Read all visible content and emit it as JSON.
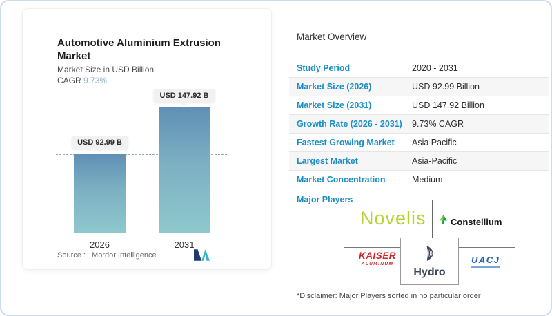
{
  "card": {
    "title": "Automotive Aluminium Extrusion Market",
    "subtitle": "Market Size in USD Billion",
    "cagr_label": "CAGR",
    "cagr_value": "9.73%",
    "source_label": "Source :",
    "source_value": "Mordor Intelligence"
  },
  "chart_data": {
    "type": "bar",
    "title": "Automotive Aluminium Extrusion Market",
    "ylabel": "Market Size in USD Billion",
    "categories": [
      "2026",
      "2031"
    ],
    "values": [
      92.99,
      147.92
    ],
    "value_labels": [
      "USD 92.99 B",
      "USD 147.92 B"
    ],
    "cagr": "9.73%",
    "reference_line": "horizontal dashed line at 2026 bar top (92.99)",
    "bar_gradient_top": "#6090b6",
    "bar_gradient_bottom": "#8fc8cd",
    "grid": "off",
    "legend": "none"
  },
  "overview": {
    "title": "Market Overview",
    "rows": [
      {
        "label": "Study Period",
        "value": "2020 - 2031"
      },
      {
        "label": "Market Size (2026)",
        "value": "USD 92.99 Billion"
      },
      {
        "label": "Market Size (2031)",
        "value": "USD 147.92 Billion"
      },
      {
        "label": "Growth Rate (2026 - 2031)",
        "value": "9.73% CAGR"
      },
      {
        "label": "Fastest Growing Market",
        "value": "Asia Pacific"
      },
      {
        "label": "Largest Market",
        "value": "Asia-Pacific"
      },
      {
        "label": "Market Concentration",
        "value": "Medium"
      }
    ],
    "major_players_label": "Major Players",
    "players": {
      "novelis": "Novelis",
      "constellium": "Constellium",
      "kaiser_line1": "KAISER",
      "kaiser_line2": "ALUMINUM",
      "hydro": "Hydro",
      "uacj": "UACJ"
    },
    "disclaimer": "*Disclaimer: Major Players sorted in no particular order"
  },
  "colors": {
    "accent_label_blue": "#1b8ec6",
    "cagr_light_blue": "#8cb0cf",
    "bar_top": "#6090b6",
    "bar_bottom": "#8fc8cd",
    "novelis_green": "#b5d334",
    "constellium_green_light": "#8dc63f",
    "constellium_green_dark": "#00a651",
    "kaiser_red": "#d2232a",
    "hydro_navy": "#3d4856",
    "uacj_blue": "#2063ad",
    "mordor_navy": "#1e3b6e",
    "mordor_teal": "#35b5cd",
    "frame_border": "#ccdcec"
  }
}
